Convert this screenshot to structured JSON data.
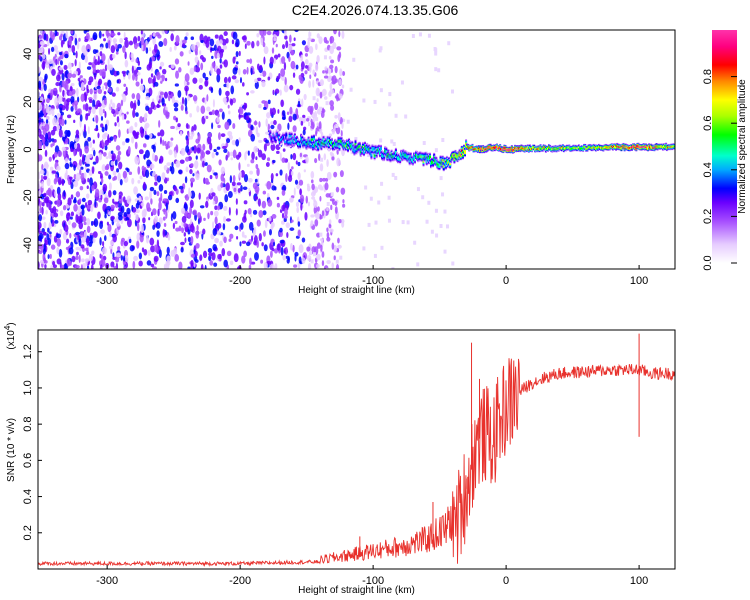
{
  "title": "C2E4.2026.074.13.35.G06",
  "chart_data": [
    {
      "type": "heatmap",
      "xlabel": "Height of straight line (km)",
      "ylabel": "Frequency (Hz)",
      "xlim": [
        -352,
        127
      ],
      "ylim": [
        -50,
        50
      ],
      "xticks": [
        -300,
        -200,
        -100,
        0,
        100
      ],
      "yticks": [
        -40,
        -20,
        0,
        20,
        40
      ],
      "colorbar": {
        "label": "Normalized spectral amplitude",
        "range": [
          0,
          1
        ],
        "ticks": [
          0.0,
          0.2,
          0.4,
          0.6,
          0.8
        ],
        "colors": [
          "#ffffff",
          "#e6ccff",
          "#a64dff",
          "#6a00ff",
          "#0000ff",
          "#00aaff",
          "#00ffcc",
          "#00ff00",
          "#aaff00",
          "#ffff00",
          "#ff8800",
          "#ff0000",
          "#ff0080",
          "#ff33aa"
        ]
      },
      "ridge": {
        "description_points_x": [
          -175,
          -150,
          -125,
          -100,
          -80,
          -60,
          -45,
          -30,
          -20,
          -10,
          0,
          20,
          50,
          80,
          100,
          127
        ],
        "description_points_y": [
          5,
          3,
          2,
          -1,
          -3,
          -4,
          -6,
          1,
          0,
          1,
          0,
          0.5,
          0.5,
          1,
          1,
          1
        ],
        "peak_amplitude": [
          0.3,
          0.45,
          0.5,
          0.45,
          0.45,
          0.5,
          0.55,
          0.75,
          0.85,
          0.9,
          0.95,
          0.7,
          0.6,
          0.75,
          0.95,
          0.6
        ]
      }
    },
    {
      "type": "line",
      "xlabel": "Height of straight line (km)",
      "ylabel": "SNR (10 * v/v)",
      "yscale_label": "(x10",
      "yscale_exponent": "4",
      "yscale_close": ")",
      "xlim": [
        -352,
        127
      ],
      "ylim": [
        0,
        1.32
      ],
      "xticks": [
        -300,
        -200,
        -100,
        0,
        100
      ],
      "yticks": [
        0.2,
        0.4,
        0.6,
        0.8,
        1.0,
        1.2
      ],
      "color": "#e8312c",
      "trend": {
        "x": [
          -352,
          -200,
          -140,
          -120,
          -100,
          -80,
          -60,
          -45,
          -35,
          -28,
          -24,
          -20,
          -15,
          -10,
          -5,
          0,
          10,
          20,
          30,
          40,
          60,
          80,
          100,
          110,
          127
        ],
        "y": [
          0.03,
          0.03,
          0.04,
          0.06,
          0.08,
          0.1,
          0.13,
          0.18,
          0.3,
          0.5,
          0.65,
          0.72,
          0.75,
          0.7,
          0.82,
          0.9,
          0.98,
          1.03,
          1.06,
          1.08,
          1.09,
          1.1,
          1.1,
          1.08,
          1.08
        ]
      },
      "spikes": [
        {
          "x": -26,
          "y": 1.25
        },
        {
          "x": -20,
          "y": 1.05
        },
        {
          "x": -14,
          "y": 0.95
        },
        {
          "x": 100,
          "y": 1.3
        },
        {
          "x": 100,
          "y": 0.73
        },
        {
          "x": -55,
          "y": 0.37
        },
        {
          "x": -30,
          "y": 0.5
        },
        {
          "x": -110,
          "y": 0.18
        }
      ]
    }
  ]
}
